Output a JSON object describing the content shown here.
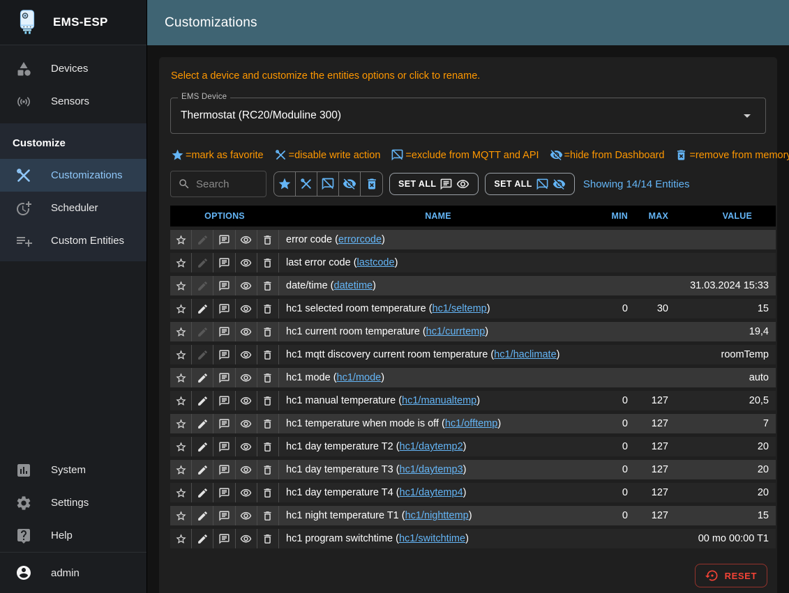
{
  "app": {
    "title": "EMS-ESP",
    "logo_icon": "logo"
  },
  "header": {
    "title": "Customizations"
  },
  "sidebar": {
    "items": [
      {
        "label": "Devices",
        "icon": "devices"
      },
      {
        "label": "Sensors",
        "icon": "sensors"
      }
    ],
    "section_label": "Customize",
    "section_items": [
      {
        "label": "Customizations",
        "icon": "customizations",
        "active": true
      },
      {
        "label": "Scheduler",
        "icon": "scheduler",
        "active": false
      },
      {
        "label": "Custom Entities",
        "icon": "custom-entities",
        "active": false
      }
    ],
    "bottom_items": [
      {
        "label": "System",
        "icon": "system"
      },
      {
        "label": "Settings",
        "icon": "settings"
      },
      {
        "label": "Help",
        "icon": "help"
      }
    ],
    "user": {
      "label": "admin",
      "icon": "account"
    }
  },
  "main": {
    "hint": "Select a device and customize the entities options or click to rename.",
    "device_select": {
      "label": "EMS Device",
      "value": "Thermostat (RC20/Moduline 300)"
    },
    "legend": [
      {
        "icon": "favorite",
        "text": "=mark as favorite"
      },
      {
        "icon": "disable-write",
        "text": "=disable write action"
      },
      {
        "icon": "exclude-mqtt",
        "text": "=exclude from MQTT and API"
      },
      {
        "icon": "hide-dashboard",
        "text": "=hide from Dashboard"
      },
      {
        "icon": "remove-memory",
        "text": "=remove from memory"
      }
    ],
    "toolbar": {
      "search_placeholder": "Search",
      "filter_buttons": [
        {
          "name": "favorite"
        },
        {
          "name": "disable-write"
        },
        {
          "name": "exclude-mqtt"
        },
        {
          "name": "hide-dashboard"
        },
        {
          "name": "remove-memory"
        }
      ],
      "set_all_buttons": [
        {
          "label": "SET ALL",
          "icons": [
            "comment",
            "eye"
          ],
          "style": "enable"
        },
        {
          "label": "SET ALL",
          "icons": [
            "exclude-mqtt",
            "hide-dashboard"
          ],
          "style": "disable"
        }
      ],
      "showing": "Showing 14/14 Entities"
    },
    "table": {
      "columns": [
        "OPTIONS",
        "NAME",
        "MIN",
        "MAX",
        "VALUE"
      ],
      "option_icons": [
        "favorite",
        "edit",
        "comment",
        "eye",
        "trash"
      ],
      "rows": [
        {
          "name": "error code",
          "shortname": "errorcode",
          "writable": false,
          "min": "",
          "max": "",
          "value": ""
        },
        {
          "name": "last error code",
          "shortname": "lastcode",
          "writable": false,
          "min": "",
          "max": "",
          "value": ""
        },
        {
          "name": "date/time",
          "shortname": "datetime",
          "writable": false,
          "min": "",
          "max": "",
          "value": "31.03.2024 15:33"
        },
        {
          "name": "hc1 selected room temperature",
          "shortname": "hc1/seltemp",
          "writable": true,
          "min": "0",
          "max": "30",
          "value": "15"
        },
        {
          "name": "hc1 current room temperature",
          "shortname": "hc1/currtemp",
          "writable": false,
          "min": "",
          "max": "",
          "value": "19,4"
        },
        {
          "name": "hc1 mqtt discovery current room temperature",
          "shortname": "hc1/haclimate",
          "writable": false,
          "min": "",
          "max": "",
          "value": "roomTemp"
        },
        {
          "name": "hc1 mode",
          "shortname": "hc1/mode",
          "writable": true,
          "min": "",
          "max": "",
          "value": "auto"
        },
        {
          "name": "hc1 manual temperature",
          "shortname": "hc1/manualtemp",
          "writable": true,
          "min": "0",
          "max": "127",
          "value": "20,5"
        },
        {
          "name": "hc1 temperature when mode is off",
          "shortname": "hc1/offtemp",
          "writable": true,
          "min": "0",
          "max": "127",
          "value": "7"
        },
        {
          "name": "hc1 day temperature T2",
          "shortname": "hc1/daytemp2",
          "writable": true,
          "min": "0",
          "max": "127",
          "value": "20"
        },
        {
          "name": "hc1 day temperature T3",
          "shortname": "hc1/daytemp3",
          "writable": true,
          "min": "0",
          "max": "127",
          "value": "20"
        },
        {
          "name": "hc1 day temperature T4",
          "shortname": "hc1/daytemp4",
          "writable": true,
          "min": "0",
          "max": "127",
          "value": "20"
        },
        {
          "name": "hc1 night temperature T1",
          "shortname": "hc1/nighttemp",
          "writable": true,
          "min": "0",
          "max": "127",
          "value": "15"
        },
        {
          "name": "hc1 program switchtime",
          "shortname": "hc1/switchtime",
          "writable": true,
          "min": "",
          "max": "",
          "value": "00 mo 00:00 T1"
        }
      ]
    },
    "reset_label": "RESET"
  },
  "colors": {
    "appbar": "#3f6473",
    "accent_blue": "#64b5f6",
    "hint_orange": "#ff9800",
    "reset_red": "#f44336",
    "active_item_bg": "#2d3d4e",
    "row_light": "#373737",
    "row_dark": "#262626"
  }
}
